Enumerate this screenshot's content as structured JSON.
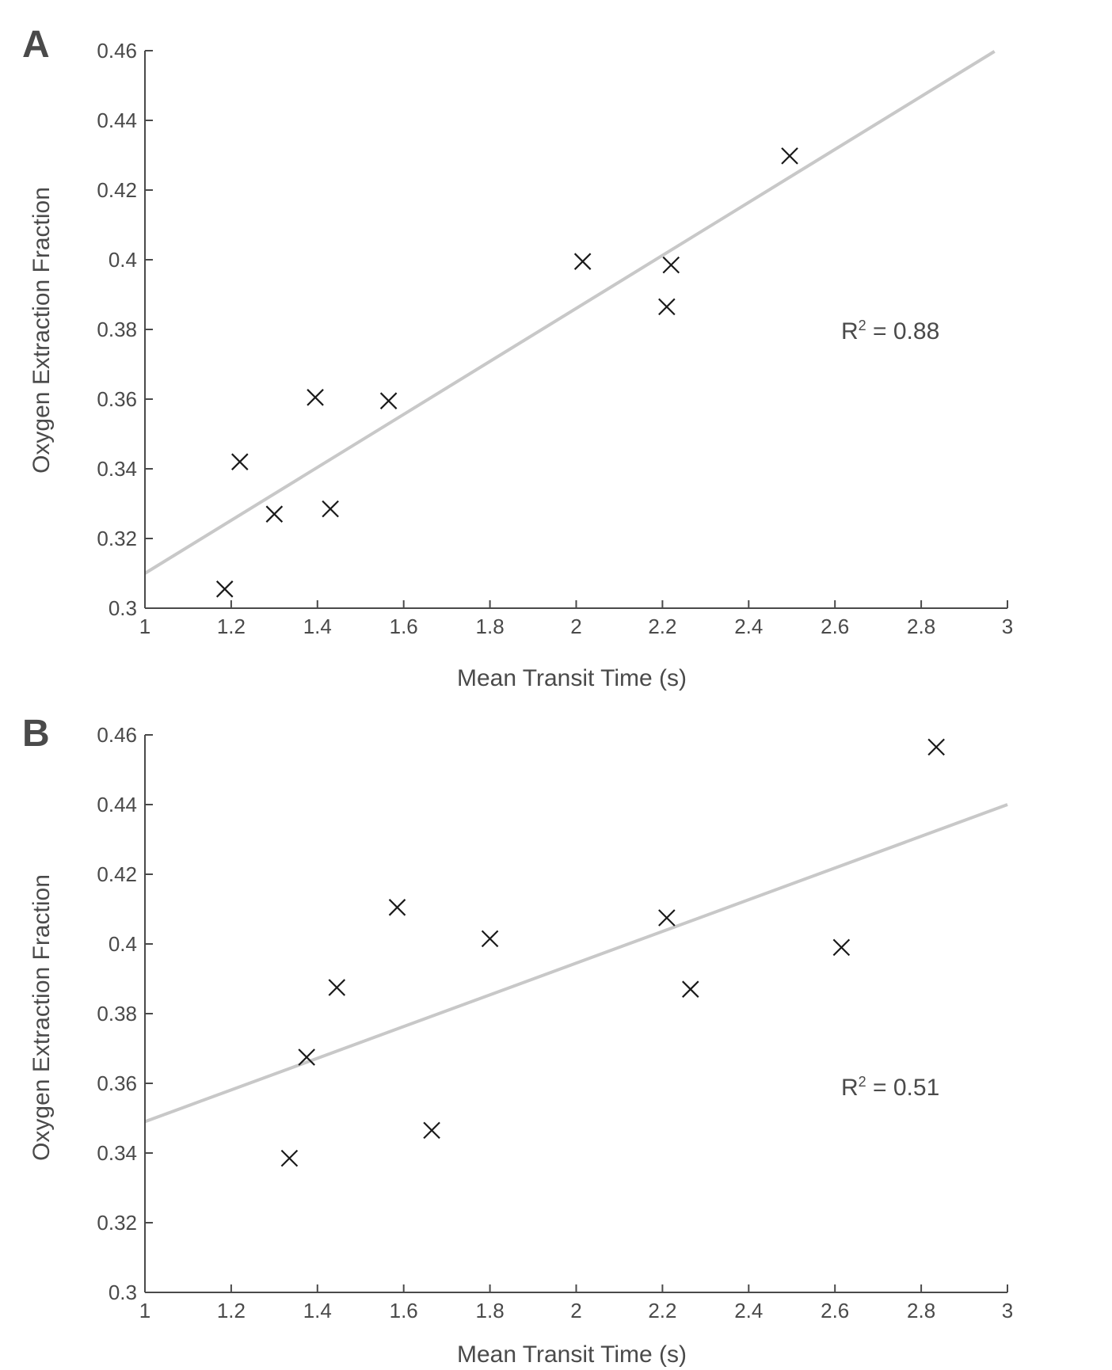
{
  "colors": {
    "axis": "#4a4a4a",
    "text": "#4a4a4a",
    "fit_line": "#c8c8c8",
    "marker": "#1a1a1a"
  },
  "chart_data": [
    {
      "panel": "A",
      "type": "scatter",
      "xlabel": "Mean Transit Time (s)",
      "ylabel": "Oxygen Extraction Fraction",
      "xlim": [
        1,
        3
      ],
      "ylim": [
        0.3,
        0.46
      ],
      "xticks": [
        1,
        1.2,
        1.4,
        1.6,
        1.8,
        2,
        2.2,
        2.4,
        2.6,
        2.8,
        3
      ],
      "xtick_labels": [
        "1",
        "1.2",
        "1.4",
        "1.6",
        "1.8",
        "2",
        "2.2",
        "2.4",
        "2.6",
        "2.8",
        "3"
      ],
      "yticks": [
        0.3,
        0.32,
        0.34,
        0.36,
        0.38,
        0.4,
        0.42,
        0.44,
        0.46
      ],
      "ytick_labels": [
        "0.3",
        "0.32",
        "0.34",
        "0.36",
        "0.38",
        "0.4",
        "0.42",
        "0.44",
        "0.46"
      ],
      "points": [
        {
          "x": 1.185,
          "y": 0.3055
        },
        {
          "x": 1.22,
          "y": 0.342
        },
        {
          "x": 1.3,
          "y": 0.327
        },
        {
          "x": 1.395,
          "y": 0.3605
        },
        {
          "x": 1.43,
          "y": 0.3285
        },
        {
          "x": 1.565,
          "y": 0.3595
        },
        {
          "x": 2.015,
          "y": 0.3995
        },
        {
          "x": 2.21,
          "y": 0.3865
        },
        {
          "x": 2.22,
          "y": 0.3985
        },
        {
          "x": 2.495,
          "y": 0.4298
        }
      ],
      "fit_line": {
        "x": [
          1,
          2.97
        ],
        "y": [
          0.31,
          0.4598
        ]
      },
      "annotation": {
        "base": "R",
        "sup": "2",
        "rest": " = 0.88"
      }
    },
    {
      "panel": "B",
      "type": "scatter",
      "xlabel": "Mean Transit Time (s)",
      "ylabel": "Oxygen Extraction Fraction",
      "xlim": [
        1,
        3
      ],
      "ylim": [
        0.3,
        0.46
      ],
      "xticks": [
        1,
        1.2,
        1.4,
        1.6,
        1.8,
        2,
        2.2,
        2.4,
        2.6,
        2.8,
        3
      ],
      "xtick_labels": [
        "1",
        "1.2",
        "1.4",
        "1.6",
        "1.8",
        "2",
        "2.2",
        "2.4",
        "2.6",
        "2.8",
        "3"
      ],
      "yticks": [
        0.3,
        0.32,
        0.34,
        0.36,
        0.38,
        0.4,
        0.42,
        0.44,
        0.46
      ],
      "ytick_labels": [
        "0.3",
        "0.32",
        "0.34",
        "0.36",
        "0.38",
        "0.4",
        "0.42",
        "0.44",
        "0.46"
      ],
      "points": [
        {
          "x": 1.335,
          "y": 0.3385
        },
        {
          "x": 1.375,
          "y": 0.3675
        },
        {
          "x": 1.445,
          "y": 0.3875
        },
        {
          "x": 1.585,
          "y": 0.4105
        },
        {
          "x": 1.665,
          "y": 0.3465
        },
        {
          "x": 1.8,
          "y": 0.4015
        },
        {
          "x": 2.21,
          "y": 0.4075
        },
        {
          "x": 2.265,
          "y": 0.387
        },
        {
          "x": 2.615,
          "y": 0.399
        },
        {
          "x": 2.835,
          "y": 0.4565
        }
      ],
      "fit_line": {
        "x": [
          1,
          3
        ],
        "y": [
          0.349,
          0.44
        ]
      },
      "annotation": {
        "base": "R",
        "sup": "2",
        "rest": " = 0.51"
      }
    }
  ]
}
